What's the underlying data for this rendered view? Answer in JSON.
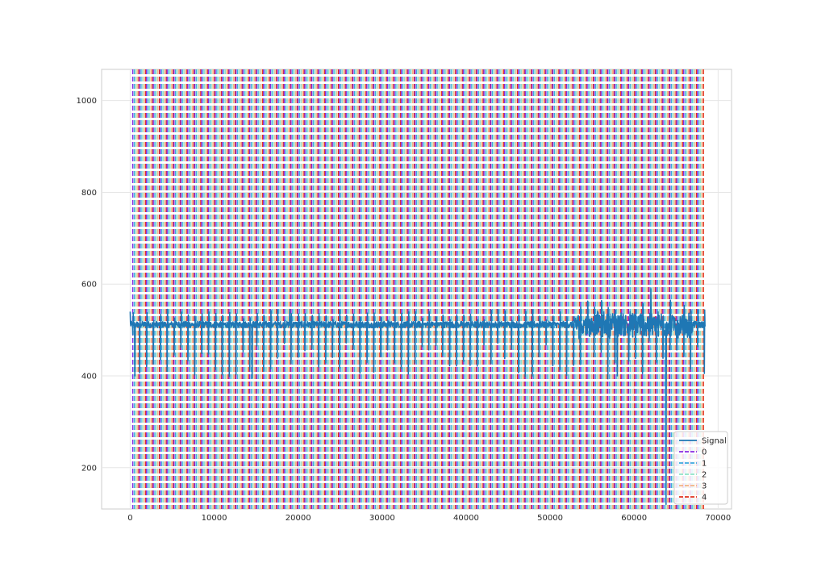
{
  "chart_data": {
    "type": "line",
    "title": "",
    "xlabel": "",
    "ylabel": "",
    "xlim": [
      -3400,
      71600
    ],
    "ylim": [
      110,
      1068
    ],
    "xticks": [
      0,
      10000,
      20000,
      30000,
      40000,
      50000,
      60000,
      70000
    ],
    "xtick_labels": [
      "0",
      "10000",
      "20000",
      "30000",
      "40000",
      "50000",
      "60000",
      "70000"
    ],
    "yticks": [
      200,
      400,
      600,
      800,
      1000
    ],
    "ytick_labels": [
      "200",
      "400",
      "600",
      "800",
      "1000"
    ],
    "grid": true,
    "legend_position": "lower-right",
    "series": [
      {
        "name": "Signal",
        "kind": "line",
        "color": "#1f77b4",
        "baseline": 512,
        "x_start": 0,
        "x_end": 68500,
        "notable_points": [
          {
            "x": 0,
            "y": 540
          },
          {
            "x": 300,
            "y": 490
          },
          {
            "x": 550,
            "y": 400
          },
          {
            "x": 14500,
            "y": 395
          },
          {
            "x": 19000,
            "y": 545
          },
          {
            "x": 58000,
            "y": 400
          },
          {
            "x": 62000,
            "y": 590
          },
          {
            "x": 63800,
            "y": 120
          },
          {
            "x": 64300,
            "y": 565
          },
          {
            "x": 68500,
            "y": 510
          }
        ]
      }
    ],
    "event_markers": {
      "style": "dashed vertical lines spanning the full plot height",
      "x_start": 300,
      "x_end": 68300,
      "approx_spacing": 820,
      "offsets": [
        0,
        180,
        360,
        540,
        720
      ],
      "series": [
        {
          "name": "0",
          "color": "#8a2be2"
        },
        {
          "name": "1",
          "color": "#3fa9e0"
        },
        {
          "name": "2",
          "color": "#8fe3c8"
        },
        {
          "name": "3",
          "color": "#f4b183"
        },
        {
          "name": "4",
          "color": "#e0301e"
        }
      ]
    },
    "legend_entries": [
      "Signal",
      "0",
      "1",
      "2",
      "3",
      "4"
    ]
  }
}
